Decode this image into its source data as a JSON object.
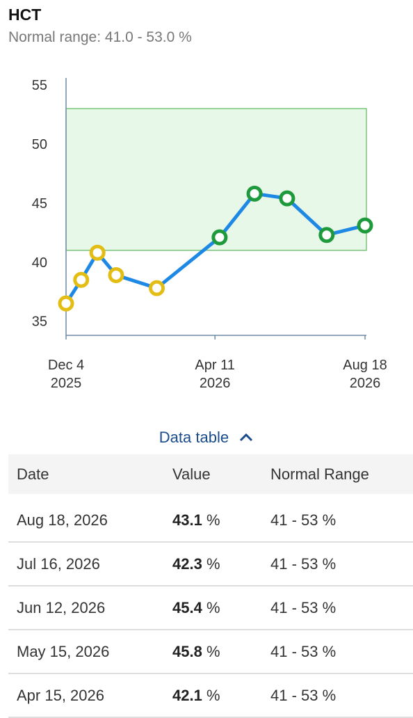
{
  "header": {
    "title": "HCT",
    "subtitle": "Normal range: 41.0 - 53.0 %"
  },
  "chart_data": {
    "type": "line",
    "x": [
      "2025-12-04",
      "2025-12-17",
      "2025-12-31",
      "2026-01-16",
      "2026-02-20",
      "2026-04-15",
      "2026-05-15",
      "2026-06-12",
      "2026-07-16",
      "2026-08-18"
    ],
    "series": [
      {
        "name": "HCT",
        "color": "#1e88e5",
        "values": [
          36.5,
          38.5,
          40.8,
          38.9,
          37.8,
          42.1,
          45.8,
          45.4,
          42.3,
          43.1
        ]
      }
    ],
    "normal_range": [
      41.0,
      53.0
    ],
    "band_color": "#e8f8e8",
    "band_line_color": "#5cb85c",
    "low_color": "#e3bd14",
    "normal_color": "#1e9a3c",
    "xlim": [
      "2025-12-04",
      "2026-08-18"
    ],
    "xticks": [
      {
        "value": "2025-12-04",
        "label": [
          "Dec 4",
          "2025"
        ]
      },
      {
        "value": "2026-04-11",
        "label": [
          "Apr 11",
          "2026"
        ]
      },
      {
        "value": "2026-08-18",
        "label": [
          "Aug 18",
          "2026"
        ]
      }
    ],
    "ylim": [
      33.8,
      55.6
    ],
    "yticks": [
      35,
      40,
      45,
      50,
      55
    ],
    "grid": false
  },
  "table": {
    "toggle": "Data table",
    "columns": [
      "Date",
      "Value",
      "Normal Range"
    ],
    "rows": [
      [
        "Aug 18, 2026",
        "43.1",
        "%",
        "41 - 53 %"
      ],
      [
        "Jul 16, 2026",
        "42.3",
        "%",
        "41 - 53 %"
      ],
      [
        "Jun 12, 2026",
        "45.4",
        "%",
        "41 - 53 %"
      ],
      [
        "May 15, 2026",
        "45.8",
        "%",
        "41 - 53 %"
      ],
      [
        "Apr 15, 2026",
        "42.1",
        "%",
        "41 - 53 %"
      ]
    ]
  }
}
